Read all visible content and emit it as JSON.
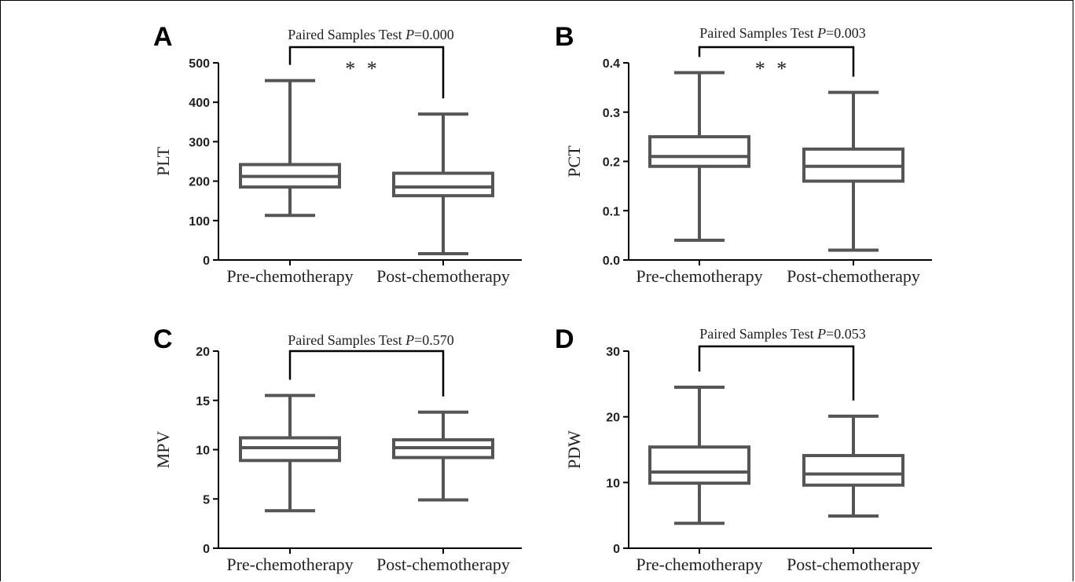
{
  "chart_data": [
    {
      "panel": "A",
      "type": "box",
      "ylabel": "PLT",
      "ylim": [
        0,
        500
      ],
      "yticks": [
        0,
        100,
        200,
        300,
        400,
        500
      ],
      "categories": [
        "Pre-chemotherapy",
        "Post-chemotherapy"
      ],
      "boxes": [
        {
          "min": 113,
          "q1": 185,
          "median": 212,
          "q3": 242,
          "max": 455
        },
        {
          "min": 16,
          "q1": 163,
          "median": 185,
          "q3": 220,
          "max": 370
        }
      ],
      "test_prefix": "Paired Samples Test ",
      "p_symbol": "P",
      "p_text": "=0.000",
      "significance": "* *"
    },
    {
      "panel": "B",
      "type": "box",
      "ylabel": "PCT",
      "ylim": [
        0,
        0.4
      ],
      "yticks": [
        "0.0",
        "0.1",
        "0.2",
        "0.3",
        "0.4"
      ],
      "categories": [
        "Pre-chemotherapy",
        "Post-chemotherapy"
      ],
      "boxes": [
        {
          "min": 0.04,
          "q1": 0.19,
          "median": 0.21,
          "q3": 0.25,
          "max": 0.38
        },
        {
          "min": 0.02,
          "q1": 0.16,
          "median": 0.19,
          "q3": 0.225,
          "max": 0.34
        }
      ],
      "test_prefix": "Paired Samples Test ",
      "p_symbol": "P",
      "p_text": "=0.003",
      "significance": "* *"
    },
    {
      "panel": "C",
      "type": "box",
      "ylabel": "MPV",
      "ylim": [
        0,
        20
      ],
      "yticks": [
        0,
        5,
        10,
        15,
        20
      ],
      "categories": [
        "Pre-chemotherapy",
        "Post-chemotherapy"
      ],
      "boxes": [
        {
          "min": 3.8,
          "q1": 8.9,
          "median": 10.2,
          "q3": 11.2,
          "max": 15.5
        },
        {
          "min": 4.9,
          "q1": 9.2,
          "median": 10.2,
          "q3": 11.0,
          "max": 13.8
        }
      ],
      "test_prefix": "Paired Samples Test ",
      "p_symbol": "P",
      "p_text": "=0.570",
      "significance": ""
    },
    {
      "panel": "D",
      "type": "box",
      "ylabel": "PDW",
      "ylim": [
        0,
        30
      ],
      "yticks": [
        0,
        10,
        20,
        30
      ],
      "categories": [
        "Pre-chemotherapy",
        "Post-chemotherapy"
      ],
      "boxes": [
        {
          "min": 3.8,
          "q1": 9.9,
          "median": 11.6,
          "q3": 15.4,
          "max": 24.5
        },
        {
          "min": 4.9,
          "q1": 9.6,
          "median": 11.3,
          "q3": 14.1,
          "max": 20.1
        }
      ],
      "test_prefix": "Paired Samples Test ",
      "p_symbol": "P",
      "p_text": "=0.053",
      "significance": ""
    }
  ],
  "colors": {
    "box": "#555555",
    "axis": "#000000",
    "bracket": "#000000"
  }
}
